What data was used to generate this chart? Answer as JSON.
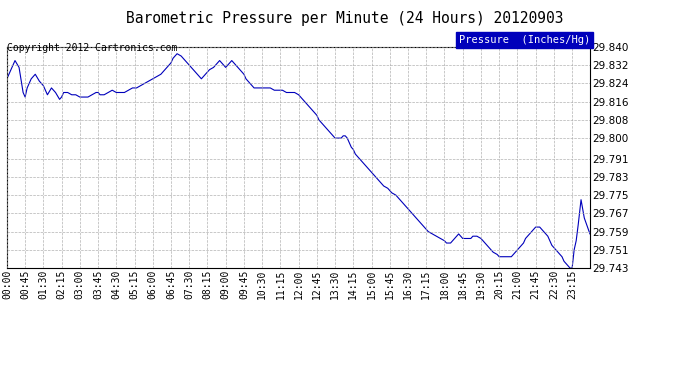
{
  "title": "Barometric Pressure per Minute (24 Hours) 20120903",
  "copyright": "Copyright 2012 Cartronics.com",
  "legend_label": "Pressure  (Inches/Hg)",
  "line_color": "#0000bb",
  "bg_color": "#ffffff",
  "plot_bg_color": "#ffffff",
  "grid_color": "#aaaaaa",
  "ylim": [
    29.743,
    29.84
  ],
  "yticks": [
    29.743,
    29.751,
    29.759,
    29.767,
    29.775,
    29.783,
    29.791,
    29.8,
    29.808,
    29.816,
    29.824,
    29.832,
    29.84
  ],
  "xtick_labels": [
    "00:00",
    "00:45",
    "01:30",
    "02:15",
    "03:00",
    "03:45",
    "04:30",
    "05:15",
    "06:00",
    "06:45",
    "07:30",
    "08:15",
    "09:00",
    "09:45",
    "10:30",
    "11:15",
    "12:00",
    "12:45",
    "13:30",
    "14:15",
    "15:00",
    "15:45",
    "16:30",
    "17:15",
    "18:00",
    "18:45",
    "19:30",
    "20:15",
    "21:00",
    "21:45",
    "22:30",
    "23:15"
  ],
  "x_values": [
    0,
    45,
    90,
    135,
    180,
    225,
    270,
    315,
    360,
    405,
    450,
    495,
    540,
    585,
    630,
    675,
    720,
    765,
    810,
    855,
    900,
    945,
    990,
    1035,
    1080,
    1125,
    1170,
    1215,
    1260,
    1305,
    1350,
    1395
  ],
  "pressure_data": [
    [
      0,
      29.826
    ],
    [
      10,
      29.83
    ],
    [
      20,
      29.834
    ],
    [
      30,
      29.831
    ],
    [
      40,
      29.82
    ],
    [
      45,
      29.818
    ],
    [
      50,
      29.822
    ],
    [
      60,
      29.826
    ],
    [
      70,
      29.828
    ],
    [
      80,
      29.825
    ],
    [
      90,
      29.823
    ],
    [
      100,
      29.819
    ],
    [
      110,
      29.822
    ],
    [
      120,
      29.82
    ],
    [
      130,
      29.817
    ],
    [
      135,
      29.818
    ],
    [
      140,
      29.82
    ],
    [
      150,
      29.82
    ],
    [
      160,
      29.819
    ],
    [
      170,
      29.819
    ],
    [
      180,
      29.818
    ],
    [
      190,
      29.818
    ],
    [
      200,
      29.818
    ],
    [
      210,
      29.819
    ],
    [
      220,
      29.82
    ],
    [
      225,
      29.82
    ],
    [
      230,
      29.819
    ],
    [
      240,
      29.819
    ],
    [
      250,
      29.82
    ],
    [
      260,
      29.821
    ],
    [
      270,
      29.82
    ],
    [
      280,
      29.82
    ],
    [
      290,
      29.82
    ],
    [
      300,
      29.821
    ],
    [
      310,
      29.822
    ],
    [
      315,
      29.822
    ],
    [
      320,
      29.822
    ],
    [
      330,
      29.823
    ],
    [
      340,
      29.824
    ],
    [
      350,
      29.825
    ],
    [
      360,
      29.826
    ],
    [
      370,
      29.827
    ],
    [
      380,
      29.828
    ],
    [
      390,
      29.83
    ],
    [
      400,
      29.832
    ],
    [
      405,
      29.833
    ],
    [
      410,
      29.835
    ],
    [
      420,
      29.837
    ],
    [
      430,
      29.836
    ],
    [
      440,
      29.834
    ],
    [
      450,
      29.832
    ],
    [
      455,
      29.831
    ],
    [
      460,
      29.83
    ],
    [
      465,
      29.829
    ],
    [
      470,
      29.828
    ],
    [
      480,
      29.826
    ],
    [
      490,
      29.828
    ],
    [
      495,
      29.829
    ],
    [
      500,
      29.83
    ],
    [
      510,
      29.831
    ],
    [
      515,
      29.832
    ],
    [
      520,
      29.833
    ],
    [
      525,
      29.834
    ],
    [
      530,
      29.833
    ],
    [
      535,
      29.832
    ],
    [
      540,
      29.831
    ],
    [
      545,
      29.832
    ],
    [
      550,
      29.833
    ],
    [
      555,
      29.834
    ],
    [
      560,
      29.833
    ],
    [
      570,
      29.831
    ],
    [
      580,
      29.829
    ],
    [
      585,
      29.828
    ],
    [
      590,
      29.826
    ],
    [
      600,
      29.824
    ],
    [
      610,
      29.822
    ],
    [
      620,
      29.822
    ],
    [
      625,
      29.822
    ],
    [
      630,
      29.822
    ],
    [
      640,
      29.822
    ],
    [
      650,
      29.822
    ],
    [
      660,
      29.821
    ],
    [
      670,
      29.821
    ],
    [
      675,
      29.821
    ],
    [
      680,
      29.821
    ],
    [
      690,
      29.82
    ],
    [
      700,
      29.82
    ],
    [
      710,
      29.82
    ],
    [
      720,
      29.819
    ],
    [
      730,
      29.817
    ],
    [
      740,
      29.815
    ],
    [
      750,
      29.813
    ],
    [
      760,
      29.811
    ],
    [
      765,
      29.81
    ],
    [
      770,
      29.808
    ],
    [
      780,
      29.806
    ],
    [
      790,
      29.804
    ],
    [
      800,
      29.802
    ],
    [
      810,
      29.8
    ],
    [
      815,
      29.8
    ],
    [
      820,
      29.8
    ],
    [
      825,
      29.8
    ],
    [
      830,
      29.801
    ],
    [
      835,
      29.801
    ],
    [
      840,
      29.8
    ],
    [
      845,
      29.798
    ],
    [
      850,
      29.796
    ],
    [
      855,
      29.795
    ],
    [
      860,
      29.793
    ],
    [
      870,
      29.791
    ],
    [
      880,
      29.789
    ],
    [
      890,
      29.787
    ],
    [
      900,
      29.785
    ],
    [
      910,
      29.783
    ],
    [
      920,
      29.781
    ],
    [
      930,
      29.779
    ],
    [
      940,
      29.778
    ],
    [
      945,
      29.777
    ],
    [
      950,
      29.776
    ],
    [
      960,
      29.775
    ],
    [
      970,
      29.773
    ],
    [
      980,
      29.771
    ],
    [
      990,
      29.769
    ],
    [
      1000,
      29.767
    ],
    [
      1010,
      29.765
    ],
    [
      1020,
      29.763
    ],
    [
      1030,
      29.761
    ],
    [
      1035,
      29.76
    ],
    [
      1040,
      29.759
    ],
    [
      1050,
      29.758
    ],
    [
      1060,
      29.757
    ],
    [
      1070,
      29.756
    ],
    [
      1080,
      29.755
    ],
    [
      1085,
      29.754
    ],
    [
      1090,
      29.754
    ],
    [
      1095,
      29.754
    ],
    [
      1100,
      29.755
    ],
    [
      1105,
      29.756
    ],
    [
      1110,
      29.757
    ],
    [
      1115,
      29.758
    ],
    [
      1120,
      29.757
    ],
    [
      1125,
      29.756
    ],
    [
      1130,
      29.756
    ],
    [
      1135,
      29.756
    ],
    [
      1140,
      29.756
    ],
    [
      1145,
      29.756
    ],
    [
      1150,
      29.757
    ],
    [
      1155,
      29.757
    ],
    [
      1160,
      29.757
    ],
    [
      1170,
      29.756
    ],
    [
      1175,
      29.755
    ],
    [
      1180,
      29.754
    ],
    [
      1185,
      29.753
    ],
    [
      1190,
      29.752
    ],
    [
      1195,
      29.751
    ],
    [
      1200,
      29.75
    ],
    [
      1210,
      29.749
    ],
    [
      1215,
      29.748
    ],
    [
      1220,
      29.748
    ],
    [
      1225,
      29.748
    ],
    [
      1230,
      29.748
    ],
    [
      1235,
      29.748
    ],
    [
      1240,
      29.748
    ],
    [
      1245,
      29.748
    ],
    [
      1250,
      29.749
    ],
    [
      1255,
      29.75
    ],
    [
      1260,
      29.751
    ],
    [
      1265,
      29.752
    ],
    [
      1270,
      29.753
    ],
    [
      1275,
      29.754
    ],
    [
      1280,
      29.756
    ],
    [
      1285,
      29.757
    ],
    [
      1290,
      29.758
    ],
    [
      1295,
      29.759
    ],
    [
      1300,
      29.76
    ],
    [
      1305,
      29.761
    ],
    [
      1310,
      29.761
    ],
    [
      1315,
      29.761
    ],
    [
      1320,
      29.76
    ],
    [
      1325,
      29.759
    ],
    [
      1330,
      29.758
    ],
    [
      1335,
      29.757
    ],
    [
      1340,
      29.755
    ],
    [
      1345,
      29.753
    ],
    [
      1350,
      29.752
    ],
    [
      1355,
      29.751
    ],
    [
      1360,
      29.75
    ],
    [
      1365,
      29.749
    ],
    [
      1370,
      29.748
    ],
    [
      1375,
      29.746
    ],
    [
      1380,
      29.745
    ],
    [
      1385,
      29.744
    ],
    [
      1390,
      29.743
    ],
    [
      1395,
      29.743
    ],
    [
      1400,
      29.751
    ],
    [
      1405,
      29.755
    ],
    [
      1410,
      29.762
    ],
    [
      1415,
      29.77
    ],
    [
      1417,
      29.773
    ],
    [
      1419,
      29.771
    ],
    [
      1421,
      29.769
    ],
    [
      1423,
      29.767
    ],
    [
      1425,
      29.765
    ],
    [
      1427,
      29.764
    ],
    [
      1429,
      29.763
    ],
    [
      1431,
      29.762
    ],
    [
      1433,
      29.761
    ],
    [
      1435,
      29.76
    ],
    [
      1437,
      29.759
    ],
    [
      1439,
      29.758
    ]
  ]
}
